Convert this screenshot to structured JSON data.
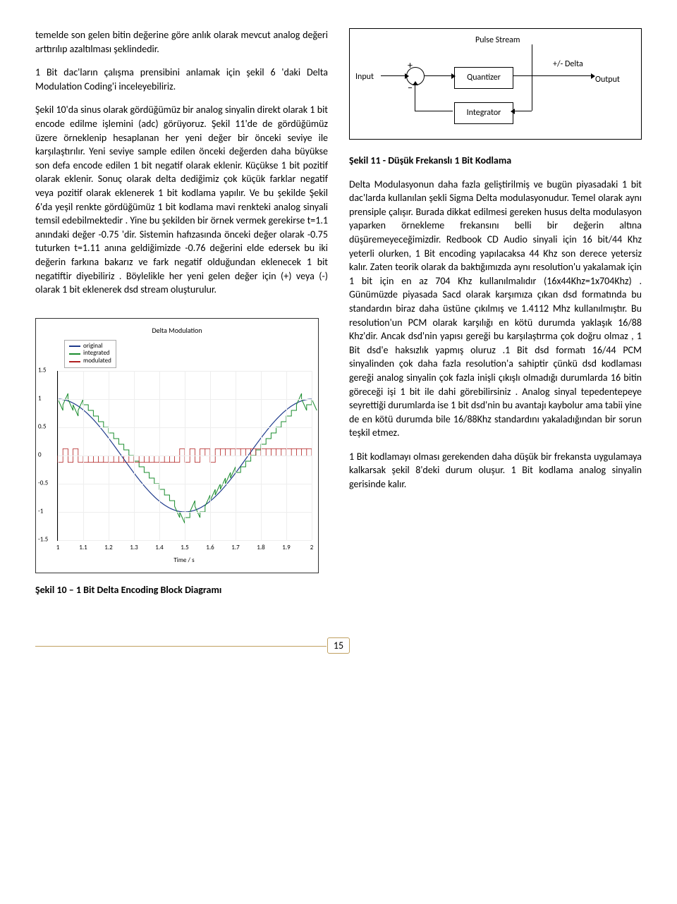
{
  "left": {
    "p1": "temelde son gelen bitin değerine göre anlık olarak mevcut analog değeri arttırılıp azaltılması şeklindedir.",
    "p2": "1 Bit dac'ların çalışma prensibini anlamak için şekil 6 'daki Delta Modulation Coding'i inceleyebiliriz.",
    "p3": "Şekil 10'da sinus olarak gördüğümüz bir analog sinyalin direkt olarak 1 bit encode edilme işlemini (adc) görüyoruz. Şekil 11'de de gördüğümüz üzere örneklenip hesaplanan her yeni değer bir önceki seviye ile karşılaştırılır. Yeni seviye sample edilen önceki değerden daha büyükse son defa encode edilen 1 bit negatif olarak eklenir. Küçükse 1 bit pozitif olarak eklenir. Sonuç olarak delta dediğimiz çok küçük farklar negatif veya pozitif olarak eklenerek 1 bit kodlama yapılır. Ve bu şekilde Şekil 6'da yeşil renkte gördüğümüz 1 bit kodlama mavi renkteki analog sinyali temsil edebilmektedir . Yine bu şekilden bir örnek vermek gerekirse t=1.1 anındaki değer -0.75 'dir. Sistemin hafızasında önceki değer olarak -0.75 tuturken t=1.11 anına geldiğimizde -0.76 değerini elde edersek bu iki değerin farkına bakarız ve fark negatif olduğundan eklenecek 1 bit negatiftir diyebiliriz . Böylelikle her yeni gelen değer için (+) veya (-) olarak 1 bit eklenerek dsd stream oluşturulur."
  },
  "right": {
    "heading": "Şekil 11 - Düşük Frekanslı 1 Bit Kodlama",
    "p1": "Delta Modulasyonun daha fazla geliştirilmiş ve bugün piyasadaki 1 bit dac'larda kullanılan şekli Sigma Delta modulasyonudur. Temel olarak aynı prensiple çalışır. Burada dikkat edilmesi gereken husus delta modulasyon yaparken örnekleme frekansını belli bir değerin altına düşüremeyeceğimizdir. Redbook CD Audio sinyali için 16 bit/44 Khz yeterli olurken, 1 Bit encoding yapılacaksa 44 Khz son derece yetersiz kalır. Zaten teorik olarak da baktığımızda aynı resolution'u yakalamak için 1 bit için en az 704 Khz kullanılmalıdır (16x44Khz=1x704Khz) . Günümüzde piyasada Sacd olarak karşımıza çıkan dsd formatında bu standardın biraz daha üstüne çıkılmış ve 1.4112 Mhz kullanılmıştır. Bu resolution'un PCM olarak karşılığı en kötü durumda yaklaşık 16/88 Khz'dir. Ancak dsd'nin yapısı gereği bu karşılaştırma çok doğru olmaz , 1 Bit dsd'e haksızlık yapmış oluruz .1 Bit dsd formatı 16/44 PCM sinyalinden çok daha fazla resolution'a sahiptir çünkü dsd kodlaması gereği analog sinyalin çok fazla inişli çıkışlı olmadığı durumlarda 16 bitin göreceği işi 1 bit ile dahi görebilirsiniz . Analog sinyal tepedentepeye seyrettiği durumlarda ise 1 bit dsd'nin bu avantajı kaybolur ama tabii yine de en kötü durumda bile 16/88Khz standardını yakaladığından bir sorun teşkil etmez.",
    "p2": "1 Bit kodlamayı olması gerekenden daha düşük bir frekansta uygulamaya kalkarsak şekil 8'deki durum oluşur. 1 Bit kodlama analog sinyalin gerisinde kalır."
  },
  "diagram": {
    "pulse_stream": "Pulse Stream",
    "input": "Input",
    "plus": "+",
    "minus": "−",
    "quantizer": "Quantizer",
    "integrator": "Integrator",
    "delta": "+/- Delta",
    "output": "Output"
  },
  "chart": {
    "title": "Delta Modulation",
    "legend": {
      "original": "original",
      "integrated": "integrated",
      "modulated": "modulated",
      "colors": {
        "original": "#1f3b8c",
        "integrated": "#1a8c2e",
        "modulated": "#b02020"
      }
    },
    "yticks": [
      "1.5",
      "1",
      "0.5",
      "0",
      "-0.5",
      "-1",
      "-1.5"
    ],
    "xticks": [
      "1",
      "1.1",
      "1.2",
      "1.3",
      "1.4",
      "1.5",
      "1.6",
      "1.7",
      "1.8",
      "1.9",
      "2"
    ],
    "xlabel": "Time / s",
    "xlim": [
      1,
      2
    ],
    "ylim": [
      -1.5,
      1.5
    ],
    "series": {
      "original_color": "#1f3b8c",
      "integrated_color": "#1a8c2e",
      "modulated_color": "#b02020",
      "background": "#ffffff",
      "grid_color": "#eeeeee"
    }
  },
  "caption10": "Şekil 10 – 1 Bit Delta Encoding Block Diagramı",
  "page_number": "15"
}
